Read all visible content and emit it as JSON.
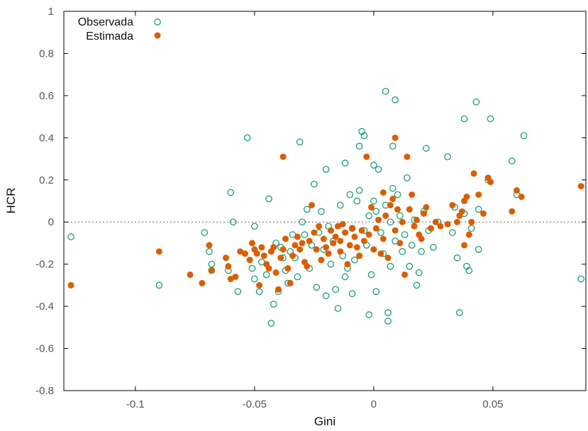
{
  "chart_data": {
    "type": "scatter",
    "xlabel": "Gini",
    "ylabel": "HCR",
    "xlim": [
      -0.13,
      0.089
    ],
    "ylim": [
      -0.8,
      1
    ],
    "x_ticks": [
      -0.1,
      -0.05,
      0,
      0.05
    ],
    "x_tick_labels": [
      "-0.1",
      "-0.05",
      "0",
      "0.05"
    ],
    "y_ticks": [
      -0.8,
      -0.6,
      -0.4,
      -0.2,
      0,
      0.2,
      0.4,
      0.6,
      0.8,
      1
    ],
    "y_tick_labels": [
      "-0.8",
      "-0.6",
      "-0.4",
      "-0.2",
      "0",
      "0.2",
      "0.4",
      "0.6",
      "0.8",
      "1"
    ],
    "zero_line": true,
    "grid": false,
    "legend_position": "top-left",
    "colors": {
      "observada": "#1a9e77",
      "estimada": "#d95f02"
    },
    "series": [
      {
        "name": "Observada",
        "marker": "open-circle",
        "points": [
          [
            -0.127,
            -0.07
          ],
          [
            -0.09,
            -0.3
          ],
          [
            -0.071,
            -0.05
          ],
          [
            -0.069,
            -0.14
          ],
          [
            -0.068,
            -0.2
          ],
          [
            -0.068,
            -0.23
          ],
          [
            -0.061,
            -0.23
          ],
          [
            -0.06,
            0.14
          ],
          [
            -0.059,
            0.0
          ],
          [
            -0.057,
            -0.33
          ],
          [
            -0.053,
            0.4
          ],
          [
            -0.051,
            -0.22
          ],
          [
            -0.05,
            -0.02
          ],
          [
            -0.05,
            -0.27
          ],
          [
            -0.048,
            -0.33
          ],
          [
            -0.047,
            -0.19
          ],
          [
            -0.045,
            -0.25
          ],
          [
            -0.044,
            0.11
          ],
          [
            -0.043,
            -0.48
          ],
          [
            -0.042,
            -0.39
          ],
          [
            -0.041,
            -0.1
          ],
          [
            -0.04,
            -0.33
          ],
          [
            -0.039,
            -0.12
          ],
          [
            -0.038,
            -0.17
          ],
          [
            -0.037,
            -0.23
          ],
          [
            -0.036,
            -0.29
          ],
          [
            -0.035,
            -0.14
          ],
          [
            -0.034,
            -0.06
          ],
          [
            -0.033,
            -0.17
          ],
          [
            -0.032,
            -0.26
          ],
          [
            -0.031,
            0.38
          ],
          [
            -0.03,
            0.0
          ],
          [
            -0.029,
            -0.06
          ],
          [
            -0.028,
            0.06
          ],
          [
            -0.027,
            -0.22
          ],
          [
            -0.026,
            -0.11
          ],
          [
            -0.025,
            0.18
          ],
          [
            -0.024,
            -0.31
          ],
          [
            -0.023,
            -0.05
          ],
          [
            -0.022,
            0.05
          ],
          [
            -0.021,
            -0.13
          ],
          [
            -0.02,
            0.25
          ],
          [
            -0.02,
            -0.35
          ],
          [
            -0.019,
            -0.02
          ],
          [
            -0.018,
            -0.2
          ],
          [
            -0.017,
            -0.09
          ],
          [
            -0.016,
            -0.32
          ],
          [
            -0.015,
            -0.41
          ],
          [
            -0.014,
            0.08
          ],
          [
            -0.013,
            -0.16
          ],
          [
            -0.012,
            -0.26
          ],
          [
            -0.012,
            0.28
          ],
          [
            -0.011,
            -0.22
          ],
          [
            -0.01,
            0.13
          ],
          [
            -0.009,
            -0.03
          ],
          [
            -0.009,
            -0.34
          ],
          [
            -0.008,
            -0.18
          ],
          [
            -0.007,
            0.1
          ],
          [
            -0.006,
            0.15
          ],
          [
            -0.006,
            0.36
          ],
          [
            -0.005,
            0.43
          ],
          [
            -0.004,
            -0.04
          ],
          [
            -0.004,
            0.41
          ],
          [
            -0.003,
            -0.11
          ],
          [
            -0.002,
            0.03
          ],
          [
            -0.002,
            -0.44
          ],
          [
            -0.001,
            -0.25
          ],
          [
            0.0,
            0.1
          ],
          [
            0.0,
            0.27
          ],
          [
            0.001,
            -0.33
          ],
          [
            0.001,
            0.05
          ],
          [
            0.002,
            0.25
          ],
          [
            0.003,
            -0.05
          ],
          [
            0.004,
            -0.15
          ],
          [
            0.005,
            0.62
          ],
          [
            0.005,
            0.08
          ],
          [
            0.006,
            -0.43
          ],
          [
            0.006,
            -0.47
          ],
          [
            0.007,
            -0.21
          ],
          [
            0.007,
            0.0
          ],
          [
            0.008,
            0.36
          ],
          [
            0.008,
            0.16
          ],
          [
            0.009,
            0.58
          ],
          [
            0.009,
            -0.09
          ],
          [
            0.01,
            0.13
          ],
          [
            0.011,
            0.03
          ],
          [
            0.012,
            -0.14
          ],
          [
            0.013,
            -0.06
          ],
          [
            0.014,
            0.21
          ],
          [
            0.015,
            -0.21
          ],
          [
            0.016,
            -0.11
          ],
          [
            0.017,
            0.01
          ],
          [
            0.018,
            -0.3
          ],
          [
            0.019,
            -0.24
          ],
          [
            0.02,
            -0.14
          ],
          [
            0.021,
            0.05
          ],
          [
            0.022,
            0.35
          ],
          [
            0.023,
            -0.04
          ],
          [
            0.025,
            -0.12
          ],
          [
            0.027,
            0.0
          ],
          [
            0.031,
            0.31
          ],
          [
            0.033,
            -0.05
          ],
          [
            0.034,
            0.07
          ],
          [
            0.035,
            -0.17
          ],
          [
            0.036,
            -0.43
          ],
          [
            0.038,
            0.49
          ],
          [
            0.038,
            0.04
          ],
          [
            0.039,
            -0.21
          ],
          [
            0.04,
            -0.23
          ],
          [
            0.041,
            -0.03
          ],
          [
            0.043,
            0.57
          ],
          [
            0.044,
            0.06
          ],
          [
            0.044,
            -0.13
          ],
          [
            0.048,
            0.2
          ],
          [
            0.049,
            0.49
          ],
          [
            0.058,
            0.29
          ],
          [
            0.06,
            0.13
          ],
          [
            0.063,
            0.41
          ],
          [
            0.087,
            -0.27
          ]
        ]
      },
      {
        "name": "Estimada",
        "marker": "filled-circle",
        "points": [
          [
            -0.127,
            -0.3
          ],
          [
            -0.09,
            -0.14
          ],
          [
            -0.077,
            -0.25
          ],
          [
            -0.072,
            -0.29
          ],
          [
            -0.069,
            -0.11
          ],
          [
            -0.068,
            -0.23
          ],
          [
            -0.062,
            -0.17
          ],
          [
            -0.061,
            -0.21
          ],
          [
            -0.06,
            -0.27
          ],
          [
            -0.058,
            -0.26
          ],
          [
            -0.056,
            -0.14
          ],
          [
            -0.054,
            -0.15
          ],
          [
            -0.052,
            -0.18
          ],
          [
            -0.051,
            -0.1
          ],
          [
            -0.05,
            -0.13
          ],
          [
            -0.049,
            -0.15
          ],
          [
            -0.048,
            -0.3
          ],
          [
            -0.047,
            -0.12
          ],
          [
            -0.046,
            -0.16
          ],
          [
            -0.045,
            -0.2
          ],
          [
            -0.044,
            -0.22
          ],
          [
            -0.043,
            -0.14
          ],
          [
            -0.042,
            -0.12
          ],
          [
            -0.041,
            -0.24
          ],
          [
            -0.04,
            -0.32
          ],
          [
            -0.039,
            -0.17
          ],
          [
            -0.038,
            -0.13
          ],
          [
            -0.038,
            0.31
          ],
          [
            -0.037,
            -0.08
          ],
          [
            -0.036,
            -0.22
          ],
          [
            -0.035,
            -0.29
          ],
          [
            -0.034,
            -0.16
          ],
          [
            -0.033,
            -0.11
          ],
          [
            -0.032,
            -0.07
          ],
          [
            -0.031,
            -0.13
          ],
          [
            -0.03,
            -0.1
          ],
          [
            -0.029,
            -0.19
          ],
          [
            -0.028,
            -0.21
          ],
          [
            -0.027,
            -0.09
          ],
          [
            -0.026,
            0.08
          ],
          [
            -0.025,
            -0.05
          ],
          [
            -0.024,
            -0.13
          ],
          [
            -0.023,
            -0.02
          ],
          [
            -0.022,
            -0.18
          ],
          [
            -0.021,
            -0.08
          ],
          [
            -0.02,
            -0.12
          ],
          [
            -0.019,
            -0.15
          ],
          [
            -0.018,
            -0.04
          ],
          [
            -0.017,
            -0.1
          ],
          [
            -0.016,
            -0.07
          ],
          [
            -0.015,
            -0.02
          ],
          [
            -0.014,
            -0.09
          ],
          [
            -0.014,
            -0.14
          ],
          [
            -0.013,
            -0.01
          ],
          [
            -0.012,
            -0.05
          ],
          [
            -0.011,
            -0.2
          ],
          [
            -0.01,
            -0.11
          ],
          [
            -0.009,
            -0.03
          ],
          [
            -0.008,
            -0.07
          ],
          [
            -0.007,
            -0.12
          ],
          [
            -0.006,
            -0.16
          ],
          [
            -0.005,
            -0.04
          ],
          [
            -0.004,
            -0.09
          ],
          [
            -0.003,
            0.31
          ],
          [
            -0.002,
            -0.06
          ],
          [
            -0.001,
            0.07
          ],
          [
            0.0,
            -0.13
          ],
          [
            0.001,
            -0.03
          ],
          [
            0.002,
            0.01
          ],
          [
            0.003,
            -0.15
          ],
          [
            0.004,
            0.14
          ],
          [
            0.004,
            -0.08
          ],
          [
            0.005,
            0.03
          ],
          [
            0.006,
            -0.17
          ],
          [
            0.007,
            0.08
          ],
          [
            0.008,
            0.11
          ],
          [
            0.009,
            0.4
          ],
          [
            0.009,
            -0.04
          ],
          [
            0.01,
            0.06
          ],
          [
            0.011,
            -0.1
          ],
          [
            0.012,
            0.0
          ],
          [
            0.013,
            -0.25
          ],
          [
            0.014,
            0.31
          ],
          [
            0.015,
            0.06
          ],
          [
            0.016,
            0.13
          ],
          [
            0.017,
            -0.02
          ],
          [
            0.018,
            0.01
          ],
          [
            0.019,
            -0.06
          ],
          [
            0.02,
            -0.08
          ],
          [
            0.021,
            0.04
          ],
          [
            0.022,
            0.07
          ],
          [
            0.024,
            -0.03
          ],
          [
            0.026,
            0.0
          ],
          [
            0.028,
            -0.02
          ],
          [
            0.031,
            -0.01
          ],
          [
            0.033,
            0.08
          ],
          [
            0.035,
            0.0
          ],
          [
            0.036,
            0.03
          ],
          [
            0.037,
            0.05
          ],
          [
            0.038,
            0.1
          ],
          [
            0.038,
            -0.11
          ],
          [
            0.039,
            0.12
          ],
          [
            0.04,
            -0.06
          ],
          [
            0.041,
            0.0
          ],
          [
            0.042,
            0.23
          ],
          [
            0.044,
            0.13
          ],
          [
            0.046,
            0.04
          ],
          [
            0.048,
            0.21
          ],
          [
            0.049,
            0.19
          ],
          [
            0.058,
            0.05
          ],
          [
            0.06,
            0.15
          ],
          [
            0.062,
            0.12
          ],
          [
            0.087,
            0.17
          ]
        ]
      }
    ]
  }
}
